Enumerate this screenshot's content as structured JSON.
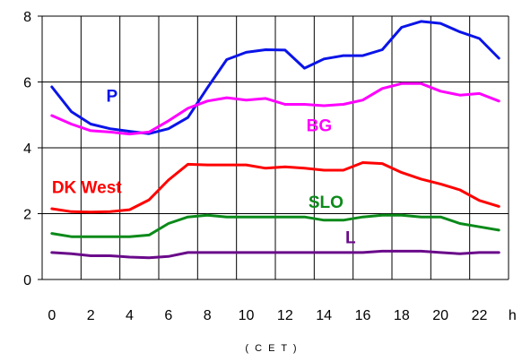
{
  "chart_data": {
    "type": "line",
    "title": "",
    "xlabel": "( C E T )",
    "ylabel": "",
    "x": [
      0.5,
      1.5,
      2.5,
      3.5,
      4.5,
      5.5,
      6.5,
      7.5,
      8.5,
      9.5,
      10.5,
      11.5,
      12.5,
      13.5,
      14.5,
      15.5,
      16.5,
      17.5,
      18.5,
      19.5,
      20.5,
      21.5,
      22.5,
      23.5
    ],
    "xlim": [
      0,
      24
    ],
    "ylim": [
      0,
      8
    ],
    "x_ticks": [
      {
        "value": 0.5,
        "label": "0"
      },
      {
        "value": 2.5,
        "label": "2"
      },
      {
        "value": 4.5,
        "label": "4"
      },
      {
        "value": 6.5,
        "label": "6"
      },
      {
        "value": 8.5,
        "label": "8"
      },
      {
        "value": 10.5,
        "label": "10"
      },
      {
        "value": 12.5,
        "label": "12"
      },
      {
        "value": 14.5,
        "label": "14"
      },
      {
        "value": 16.5,
        "label": "16"
      },
      {
        "value": 18.5,
        "label": "18"
      },
      {
        "value": 20.5,
        "label": "20"
      },
      {
        "value": 22.5,
        "label": "22"
      },
      {
        "value": 24.2,
        "label": "h"
      }
    ],
    "y_ticks": [
      {
        "value": 0,
        "label": "0"
      },
      {
        "value": 2,
        "label": "2"
      },
      {
        "value": 4,
        "label": "4"
      },
      {
        "value": 6,
        "label": "6"
      },
      {
        "value": 8,
        "label": "8"
      }
    ],
    "grid": true,
    "series": [
      {
        "name": "P",
        "color": "#0a14e8",
        "values": [
          5.85,
          5.1,
          4.72,
          4.58,
          4.5,
          4.43,
          4.58,
          4.92,
          5.82,
          6.68,
          6.9,
          6.98,
          6.97,
          6.42,
          6.7,
          6.8,
          6.8,
          6.98,
          7.66,
          7.84,
          7.78,
          7.52,
          7.32,
          6.72
        ],
        "label_at": [
          3.3,
          5.4
        ]
      },
      {
        "name": "BG",
        "color": "#ff00ff",
        "values": [
          4.98,
          4.72,
          4.52,
          4.48,
          4.42,
          4.48,
          4.82,
          5.2,
          5.42,
          5.52,
          5.45,
          5.5,
          5.32,
          5.32,
          5.28,
          5.32,
          5.45,
          5.8,
          5.95,
          5.95,
          5.72,
          5.6,
          5.65,
          5.42
        ],
        "label_at": [
          13.6,
          4.5
        ]
      },
      {
        "name": "DK West",
        "color": "#ff0000",
        "values": [
          2.15,
          2.06,
          2.05,
          2.06,
          2.12,
          2.42,
          3.02,
          3.5,
          3.48,
          3.48,
          3.48,
          3.38,
          3.42,
          3.38,
          3.32,
          3.32,
          3.55,
          3.52,
          3.25,
          3.05,
          2.9,
          2.72,
          2.4,
          2.22
        ],
        "label_at": [
          0.5,
          2.62
        ]
      },
      {
        "name": "SLO",
        "color": "#0b8a1a",
        "values": [
          1.4,
          1.3,
          1.3,
          1.3,
          1.3,
          1.35,
          1.7,
          1.9,
          1.95,
          1.9,
          1.9,
          1.9,
          1.9,
          1.9,
          1.8,
          1.8,
          1.9,
          1.95,
          1.95,
          1.9,
          1.9,
          1.7,
          1.6,
          1.5
        ],
        "label_at": [
          13.7,
          2.18
        ]
      },
      {
        "name": "L",
        "color": "#6a0a8a",
        "values": [
          0.82,
          0.78,
          0.72,
          0.72,
          0.68,
          0.66,
          0.7,
          0.82,
          0.82,
          0.82,
          0.82,
          0.82,
          0.82,
          0.82,
          0.82,
          0.82,
          0.82,
          0.86,
          0.86,
          0.86,
          0.82,
          0.78,
          0.82,
          0.82
        ],
        "label_at": [
          15.6,
          1.1
        ]
      }
    ]
  }
}
